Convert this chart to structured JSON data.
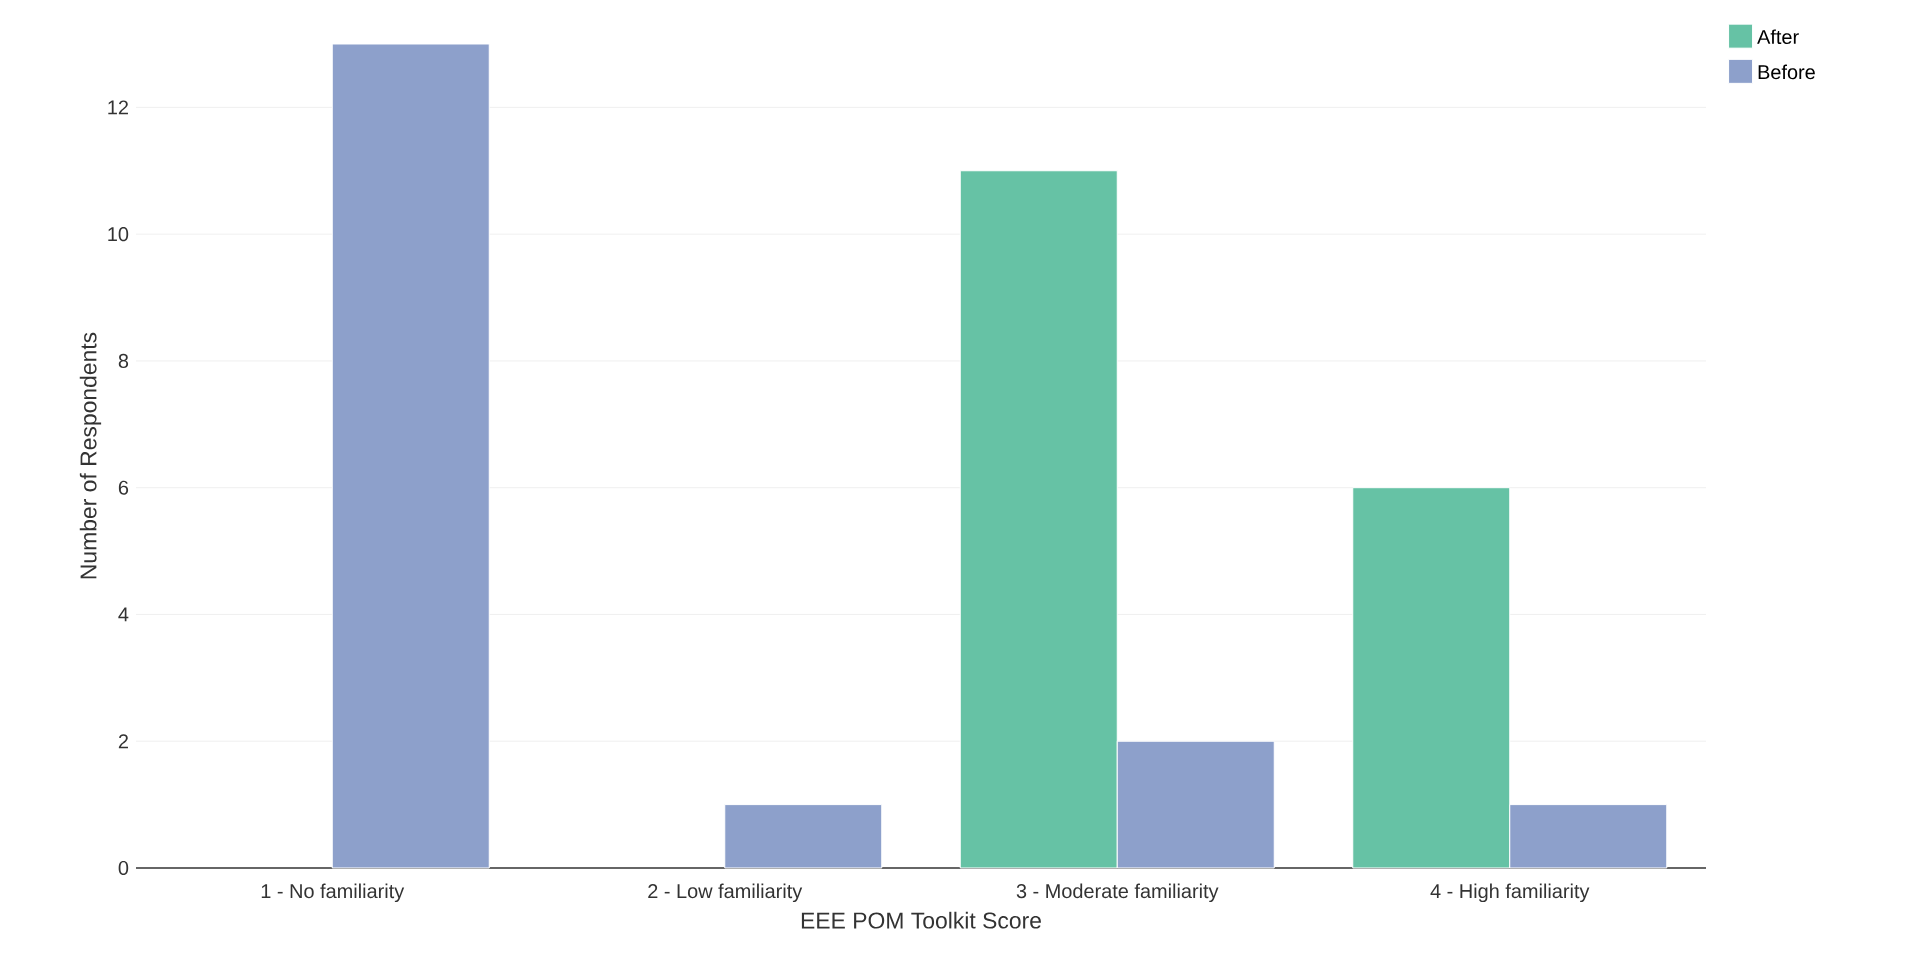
{
  "chart_data": {
    "type": "bar",
    "xlabel": "EEE POM Toolkit Score",
    "ylabel": "Number of Respondents",
    "categories": [
      "1 - No familiarity",
      "2 - Low familiarity",
      "3 - Moderate familiarity",
      "4 - High familiarity"
    ],
    "series": [
      {
        "name": "After",
        "color": "#66c2a5",
        "values": [
          null,
          null,
          11,
          6
        ]
      },
      {
        "name": "Before",
        "color": "#8da0cb",
        "values": [
          13,
          1,
          2,
          1
        ]
      }
    ],
    "ylim": [
      0,
      13
    ],
    "yticks": [
      0,
      2,
      4,
      6,
      8,
      10,
      12
    ],
    "grid": "y",
    "legend": "top right"
  }
}
